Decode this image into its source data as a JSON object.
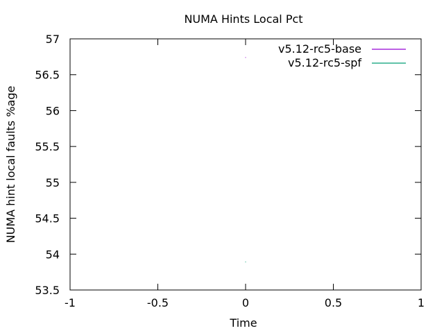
{
  "chart_data": {
    "type": "line",
    "title": "NUMA Hints Local Pct",
    "xlabel": "Time",
    "ylabel": "NUMA hint local faults %age",
    "xlim": [
      -1,
      1
    ],
    "ylim": [
      53.5,
      57
    ],
    "x_ticks": [
      "-1",
      "-0.5",
      "0",
      "0.5",
      "1"
    ],
    "x_tick_values": [
      -1,
      -0.5,
      0,
      0.5,
      1
    ],
    "y_ticks": [
      "53.5",
      "54",
      "54.5",
      "55",
      "55.5",
      "56",
      "56.5",
      "57"
    ],
    "y_tick_values": [
      53.5,
      54,
      54.5,
      55,
      55.5,
      56,
      56.5,
      57
    ],
    "grid": false,
    "legend_position": "top-right",
    "series": [
      {
        "name": "v5.12-rc5-base",
        "color": "#9400d3",
        "x": [
          0
        ],
        "y": [
          56.74
        ]
      },
      {
        "name": "v5.12-rc5-spf",
        "color": "#009e73",
        "x": [
          0
        ],
        "y": [
          53.89
        ]
      }
    ]
  }
}
